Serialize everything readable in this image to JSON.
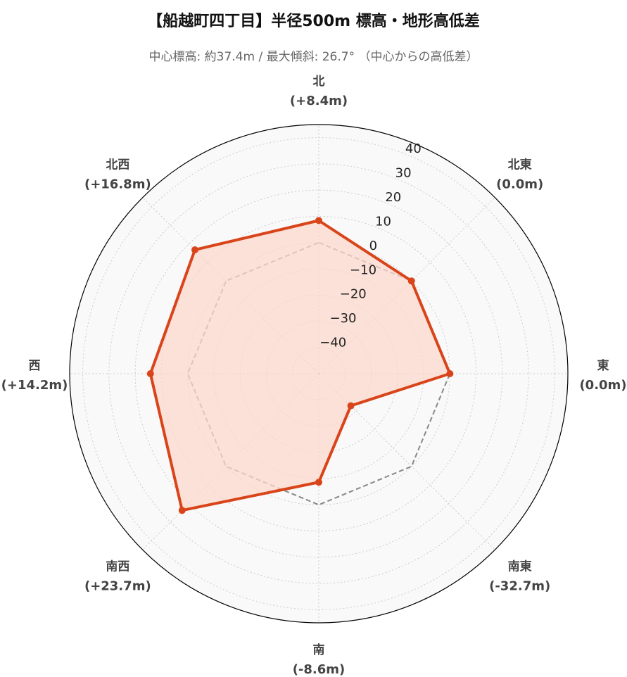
{
  "title": "【船越町四丁目】半径500m 標高・地形高低差",
  "subtitle": "中心標高: 約37.4m / 最大傾斜: 26.7° （中心からの高低差）",
  "colors": {
    "series": "#d9441a",
    "fill": "#fbd8cc",
    "reference": "#888888",
    "grid": "#cccccc",
    "background": "#f9f9f9"
  },
  "chart_data": {
    "type": "radar",
    "categories": [
      "北",
      "北東",
      "東",
      "南東",
      "南",
      "南西",
      "西",
      "北西"
    ],
    "value_labels": [
      "(+8.4m)",
      "(0.0m)",
      "(0.0m)",
      "(-32.7m)",
      "(-8.6m)",
      "(+23.7m)",
      "(+14.2m)",
      "(+16.8m)"
    ],
    "series": [
      {
        "values": [
          8.4,
          0.0,
          0.0,
          -32.7,
          -8.6,
          23.7,
          14.2,
          16.8
        ]
      }
    ],
    "reference_line": 0,
    "rlim": [
      -50,
      45
    ],
    "rticks": [
      -40,
      -30,
      -20,
      -10,
      0,
      10,
      20,
      30,
      40
    ],
    "grid": true
  }
}
